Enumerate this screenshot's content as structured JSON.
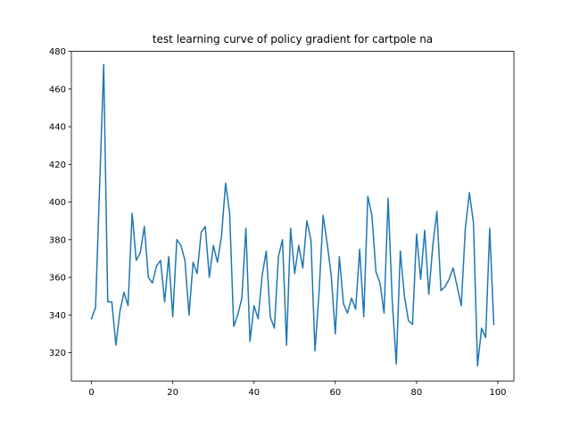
{
  "chart_data": {
    "type": "line",
    "title": "test learning curve of policy gradient for cartpole na",
    "xlabel": "",
    "ylabel": "",
    "xlim": [
      -4.95,
      103.95
    ],
    "ylim": [
      305,
      480
    ],
    "xticks": [
      0,
      20,
      40,
      60,
      80,
      100
    ],
    "yticks": [
      320,
      340,
      360,
      380,
      400,
      420,
      440,
      460,
      480
    ],
    "grid": false,
    "line_color": "#1f77b4",
    "x": [
      0,
      1,
      2,
      3,
      4,
      5,
      6,
      7,
      8,
      9,
      10,
      11,
      12,
      13,
      14,
      15,
      16,
      17,
      18,
      19,
      20,
      21,
      22,
      23,
      24,
      25,
      26,
      27,
      28,
      29,
      30,
      31,
      32,
      33,
      34,
      35,
      36,
      37,
      38,
      39,
      40,
      41,
      42,
      43,
      44,
      45,
      46,
      47,
      48,
      49,
      50,
      51,
      52,
      53,
      54,
      55,
      56,
      57,
      58,
      59,
      60,
      61,
      62,
      63,
      64,
      65,
      66,
      67,
      68,
      69,
      70,
      71,
      72,
      73,
      74,
      75,
      76,
      77,
      78,
      79,
      80,
      81,
      82,
      83,
      84,
      85,
      86,
      87,
      88,
      89,
      90,
      91,
      92,
      93,
      94,
      95,
      96,
      97,
      98,
      99
    ],
    "series": [
      {
        "values": [
          338,
          344,
          408,
          473,
          347,
          347,
          324,
          342,
          352,
          345,
          394,
          369,
          373,
          387,
          360,
          357,
          366,
          369,
          347,
          371,
          339,
          380,
          377,
          369,
          340,
          368,
          362,
          384,
          387,
          360,
          377,
          368,
          382,
          410,
          394,
          334,
          340,
          349,
          386,
          326,
          345,
          338,
          361,
          374,
          339,
          333,
          371,
          380,
          324,
          386,
          362,
          377,
          365,
          390,
          380,
          321,
          352,
          393,
          378,
          361,
          330,
          371,
          346,
          341,
          349,
          343,
          375,
          339,
          403,
          393,
          363,
          357,
          341,
          402,
          348,
          314,
          374,
          350,
          337,
          335,
          383,
          359,
          385,
          351,
          377,
          395,
          353,
          355,
          359,
          365,
          355,
          345,
          386,
          405,
          389,
          313,
          333,
          328,
          386,
          335
        ]
      }
    ]
  }
}
